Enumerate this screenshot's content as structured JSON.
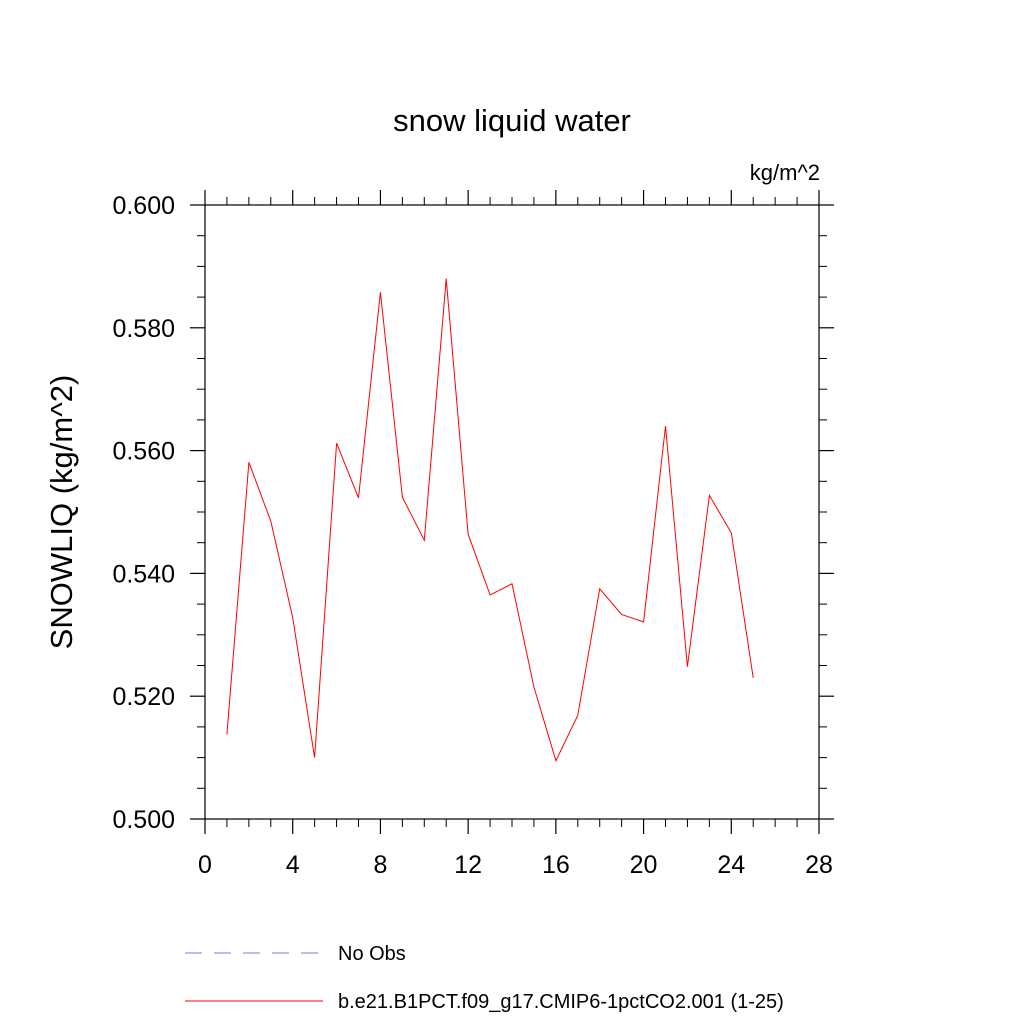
{
  "chart_data": {
    "type": "line",
    "title": "snow liquid water",
    "units_label": "kg/m^2",
    "ylabel": "SNOWLIQ  (kg/m^2)",
    "xlabel": "",
    "xlim": [
      0,
      28
    ],
    "ylim": [
      0.5,
      0.6
    ],
    "xticks": [
      0,
      4,
      8,
      12,
      16,
      20,
      24,
      28
    ],
    "xtick_labels": [
      "0",
      "4",
      "8",
      "12",
      "16",
      "20",
      "24",
      "28"
    ],
    "yticks": [
      0.5,
      0.52,
      0.54,
      0.56,
      0.58,
      0.6
    ],
    "ytick_labels": [
      "0.500",
      "0.520",
      "0.540",
      "0.560",
      "0.580",
      "0.600"
    ],
    "grid": false,
    "legend_position": "bottom",
    "series": [
      {
        "name": "b.e21.B1PCT.f09_g17.CMIP6-1pctCO2.001 (1-25)",
        "color": "#ff0000",
        "style": "solid",
        "x": [
          1,
          2,
          3,
          4,
          5,
          6,
          7,
          8,
          9,
          10,
          11,
          12,
          13,
          14,
          15,
          16,
          17,
          18,
          19,
          20,
          21,
          22,
          23,
          24,
          25
        ],
        "y": [
          0.5138,
          0.5581,
          0.5485,
          0.5328,
          0.51,
          0.5612,
          0.5523,
          0.5858,
          0.5524,
          0.5454,
          0.588,
          0.5464,
          0.5365,
          0.5383,
          0.5215,
          0.5095,
          0.5169,
          0.5375,
          0.5333,
          0.5321,
          0.564,
          0.5248,
          0.5527,
          0.5466,
          0.523
        ]
      }
    ],
    "legend": [
      {
        "label": "No Obs",
        "color": "#7b7bcf",
        "style": "dashed"
      },
      {
        "label": "b.e21.B1PCT.f09_g17.CMIP6-1pctCO2.001 (1-25)",
        "color": "#ff0000",
        "style": "solid"
      }
    ]
  }
}
